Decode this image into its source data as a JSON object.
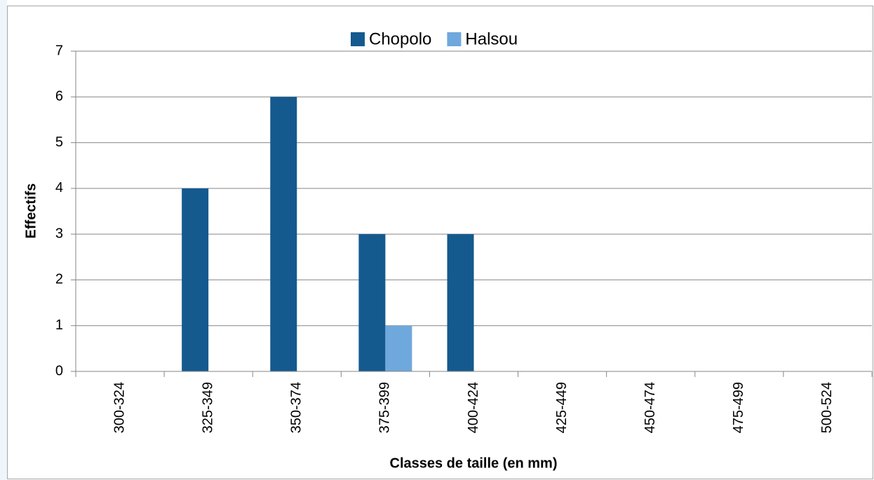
{
  "chart_data": {
    "type": "bar",
    "x_label": "Classes de taille (en mm)",
    "y_label": "Effectifs",
    "categories": [
      "300-324",
      "325-349",
      "350-374",
      "375-399",
      "400-424",
      "425-449",
      "450-474",
      "475-499",
      "500-524"
    ],
    "series": [
      {
        "name": "Chopolo",
        "color": "#145a8f",
        "values": [
          0,
          4,
          6,
          3,
          3,
          0,
          0,
          0,
          0
        ]
      },
      {
        "name": "Halsou",
        "color": "#6fa8dc",
        "values": [
          0,
          0,
          0,
          1,
          0,
          0,
          0,
          0,
          0
        ]
      }
    ],
    "ylim": [
      0,
      7
    ],
    "yticks": [
      0,
      1,
      2,
      3,
      4,
      5,
      6,
      7
    ],
    "grid": true,
    "legend": "top"
  }
}
